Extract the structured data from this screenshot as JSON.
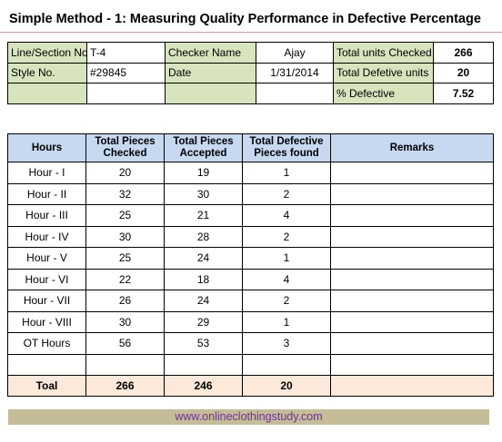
{
  "title": "Simple  Method - 1: Measuring Quality Performance in Defective Percentage",
  "info": {
    "line_label": "Line/Section No.",
    "line_value": "T-4",
    "checker_label": "Checker Name",
    "checker_value": "Ajay",
    "total_checked_label": "Total units Checked",
    "total_checked_value": "266",
    "style_label": "Style No.",
    "style_value": "#29845",
    "date_label": "Date",
    "date_value": "1/31/2014",
    "total_defective_label": "Total Defetive units",
    "total_defective_value": "20",
    "pct_label": "% Defective",
    "pct_value": "7.52"
  },
  "table": {
    "headers": [
      "Hours",
      "Total Pieces Checked",
      "Total Pieces Accepted",
      "Total Defective Pieces found",
      "Remarks"
    ],
    "rows": [
      {
        "hour": "Hour - I",
        "checked": "20",
        "accepted": "19",
        "defective": "1"
      },
      {
        "hour": "Hour - II",
        "checked": "32",
        "accepted": "30",
        "defective": "2"
      },
      {
        "hour": "Hour - III",
        "checked": "25",
        "accepted": "21",
        "defective": "4"
      },
      {
        "hour": "Hour - IV",
        "checked": "30",
        "accepted": "28",
        "defective": "2"
      },
      {
        "hour": "Hour - V",
        "checked": "25",
        "accepted": "24",
        "defective": "1"
      },
      {
        "hour": "Hour - VI",
        "checked": "22",
        "accepted": "18",
        "defective": "4"
      },
      {
        "hour": "Hour - VII",
        "checked": "26",
        "accepted": "24",
        "defective": "2"
      },
      {
        "hour": "Hour - VIII",
        "checked": "30",
        "accepted": "29",
        "defective": "1"
      },
      {
        "hour": "OT Hours",
        "checked": "56",
        "accepted": "53",
        "defective": "3"
      },
      {
        "hour": "",
        "checked": "",
        "accepted": "",
        "defective": ""
      }
    ],
    "total": {
      "label": "Toal",
      "checked": "266",
      "accepted": "246",
      "defective": "20"
    }
  },
  "footer": "www.onlineclothingstudy.com",
  "colors": {
    "info_label_bg": "#d7e4bd",
    "header_bg": "#c6d9f1",
    "total_bg": "#fde9d9",
    "footer_bg": "#c4bd97",
    "footer_text": "#7030a0"
  }
}
